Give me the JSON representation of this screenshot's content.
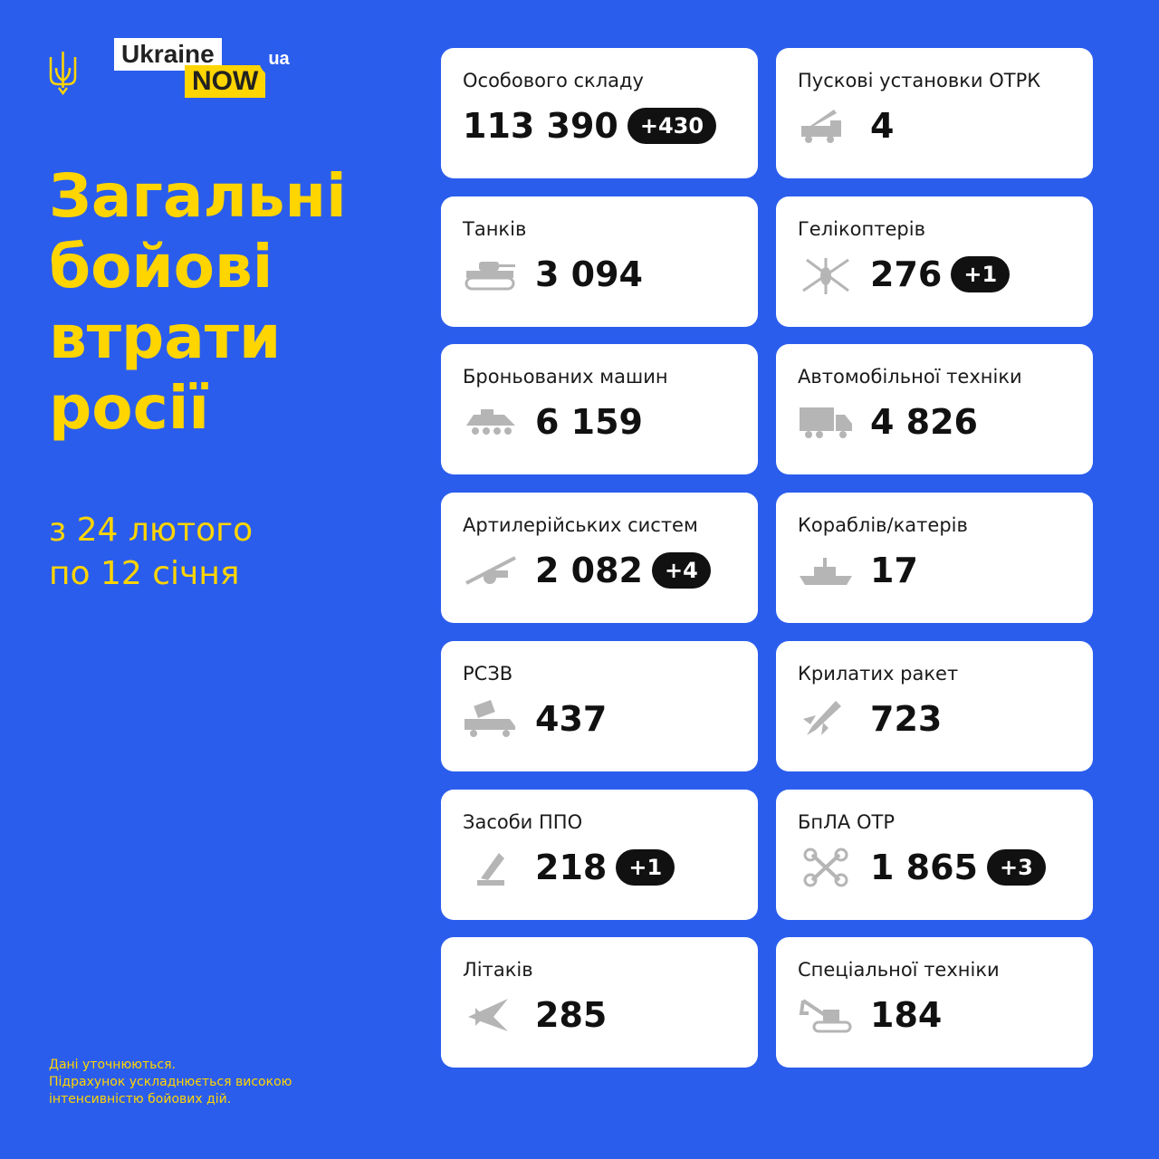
{
  "brand": {
    "logo_line1": "Ukraine",
    "logo_line2": "NOW",
    "logo_badge": "ua"
  },
  "title": [
    "Загальні",
    "бойові",
    "втрати",
    "росії"
  ],
  "period": {
    "line1": "з 24 лютого",
    "line2": "по  12 січня"
  },
  "note": [
    "Дані уточнюються.",
    "Підрахунок ускладнюється високою",
    "інтенсивністю бойових дій."
  ],
  "colors": {
    "background": "#2b5ded",
    "accent": "#ffd500",
    "card": "#ffffff",
    "badge": "#111111",
    "icon": "#b5b5b5"
  },
  "cards": [
    {
      "label": "Особового складу",
      "value": "113 390",
      "delta": "+430",
      "icon": "none"
    },
    {
      "label": "Пускові установки ОТРК",
      "value": "4",
      "delta": "",
      "icon": "missile-launcher-icon"
    },
    {
      "label": "Танків",
      "value": "3 094",
      "delta": "",
      "icon": "tank-icon"
    },
    {
      "label": "Гелікоптерів",
      "value": "276",
      "delta": "+1",
      "icon": "helicopter-icon"
    },
    {
      "label": "Броньованих машин",
      "value": "6 159",
      "delta": "",
      "icon": "apc-icon"
    },
    {
      "label": "Автомобільної техніки",
      "value": "4 826",
      "delta": "",
      "icon": "truck-icon"
    },
    {
      "label": "Артилерійських систем",
      "value": "2 082",
      "delta": "+4",
      "icon": "artillery-icon"
    },
    {
      "label": "Кораблів/катерів",
      "value": "17",
      "delta": "",
      "icon": "ship-icon"
    },
    {
      "label": "РСЗВ",
      "value": "437",
      "delta": "",
      "icon": "mlrs-icon"
    },
    {
      "label": "Крилатих ракет",
      "value": "723",
      "delta": "",
      "icon": "cruise-missile-icon"
    },
    {
      "label": "Засоби ППО",
      "value": "218",
      "delta": "+1",
      "icon": "air-defense-icon"
    },
    {
      "label": "БпЛА ОТР",
      "value": "1 865",
      "delta": "+3",
      "icon": "drone-icon"
    },
    {
      "label": "Літаків",
      "value": "285",
      "delta": "",
      "icon": "plane-icon"
    },
    {
      "label": "Спеціальної техніки",
      "value": "184",
      "delta": "",
      "icon": "excavator-icon"
    }
  ]
}
